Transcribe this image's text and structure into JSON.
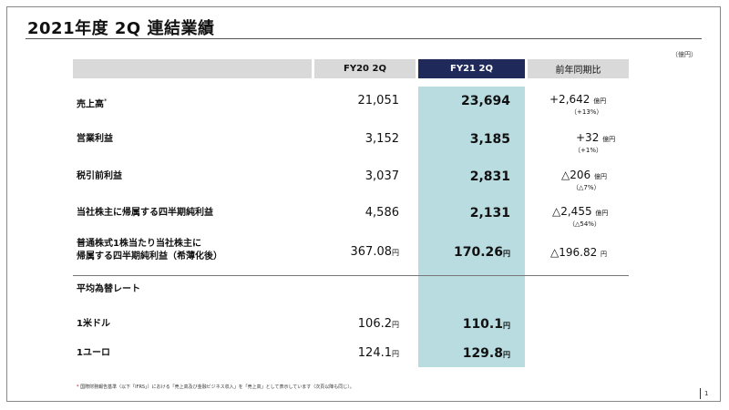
{
  "title": "2021年度 2Q 連結業績",
  "unit": "（億円）",
  "columns": {
    "fy20": "FY20 2Q",
    "fy21": "FY21 2Q",
    "yoy": "前年同期比"
  },
  "rows": [
    {
      "label": "売上高",
      "label_mark": "*",
      "fy20": "21,051",
      "fy21": "23,694",
      "yoy": "+2,642",
      "yoy_unit": "億円",
      "yoy_pct": "（+13%）"
    },
    {
      "label": "営業利益",
      "fy20": "3,152",
      "fy21": "3,185",
      "yoy": "+32",
      "yoy_unit": "億円",
      "yoy_pct": "（+1%）"
    },
    {
      "label": "税引前利益",
      "fy20": "3,037",
      "fy21": "2,831",
      "yoy": "△206",
      "yoy_unit": "億円",
      "yoy_pct": "（△7%）"
    },
    {
      "label": "当社株主に帰属する四半期純利益",
      "fy20": "4,586",
      "fy21": "2,131",
      "yoy": "△2,455",
      "yoy_unit": "億円",
      "yoy_pct": "（△54%）"
    },
    {
      "label_line1": "普通株式1株当たり当社株主に",
      "label_line2": "帰属する四半期純利益（希薄化後）",
      "fy20": "367.08",
      "fy20_unit": "円",
      "fy21": "170.26",
      "fy21_unit": "円",
      "yoy": "△196.82",
      "yoy_unit": "円"
    }
  ],
  "fx": {
    "heading": "平均為替レート",
    "rows": [
      {
        "label": "1米ドル",
        "fy20": "106.2",
        "fy20_unit": "円",
        "fy21": "110.1",
        "fy21_unit": "円"
      },
      {
        "label": "1ユーロ",
        "fy20": "124.1",
        "fy20_unit": "円",
        "fy21": "129.8",
        "fy21_unit": "円"
      }
    ]
  },
  "footnote": {
    "mark": "*",
    "text": "国際財務報告基準（以下「IFRS」）における「売上高及び金融ビジネス収入」を「売上高」として表示しています（次頁以降も同じ）。"
  },
  "page_number": "1",
  "colors": {
    "header_gray": "#d9d9d9",
    "header_navy": "#1f2a5a",
    "highlight": "#b8dce0"
  }
}
